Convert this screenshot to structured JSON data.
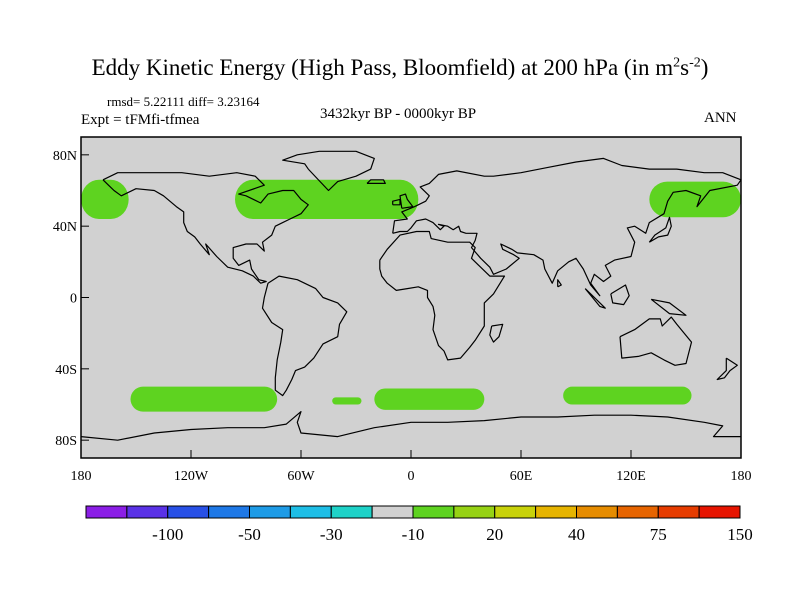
{
  "title_main": "Eddy Kinetic Energy (High Pass, Bloomfield) at 200 hPa (in m",
  "title_sup1": "2",
  "title_mid": "s",
  "title_sup2": "-2",
  "title_end": ")",
  "stats": "rmsd= 5.22111  diff= 3.23164",
  "expt": "Expt = tFMfi-tfmea",
  "period": "3432kyr BP - 0000kyr BP",
  "season": "ANN",
  "chart_data": {
    "type": "heatmap",
    "title": "Eddy Kinetic Energy (High Pass, Bloomfield) at 200 hPa (in m2s-2)",
    "x_axis": {
      "label": "",
      "range": [
        -180,
        180
      ],
      "ticks": [
        {
          "v": -180,
          "label": "180"
        },
        {
          "v": -120,
          "label": "120W"
        },
        {
          "v": -60,
          "label": "60W"
        },
        {
          "v": 0,
          "label": "0"
        },
        {
          "v": 60,
          "label": "60E"
        },
        {
          "v": 120,
          "label": "120E"
        },
        {
          "v": 180,
          "label": "180"
        }
      ]
    },
    "y_axis": {
      "label": "",
      "range": [
        -90,
        90
      ],
      "ticks": [
        {
          "v": 80,
          "label": "80N"
        },
        {
          "v": 40,
          "label": "40N"
        },
        {
          "v": 0,
          "label": "0"
        },
        {
          "v": -40,
          "label": "40S"
        },
        {
          "v": -80,
          "label": "80S"
        }
      ]
    },
    "background_color": "#d1d1d1",
    "regions": [
      {
        "name": "north-pacific-east",
        "level": "10 to 20",
        "color": "#5ed320",
        "center": [
          -168,
          55
        ],
        "half_width": [
          14,
          11
        ]
      },
      {
        "name": "north-atlantic",
        "level": "10 to 20",
        "color": "#5ed320",
        "center": [
          -46,
          55
        ],
        "half_width": [
          50,
          11
        ]
      },
      {
        "name": "north-pacific-west",
        "level": "10 to 20",
        "color": "#5ed320",
        "center": [
          155,
          55
        ],
        "half_width": [
          25,
          10
        ]
      },
      {
        "name": "south-pacific",
        "level": "10 to 20",
        "color": "#5ed320",
        "center": [
          -113,
          -57
        ],
        "half_width": [
          40,
          7
        ]
      },
      {
        "name": "south-atlantic-small",
        "level": "10 to 20",
        "color": "#5ed320",
        "center": [
          -35,
          -58
        ],
        "half_width": [
          8,
          2
        ]
      },
      {
        "name": "south-indian-west",
        "level": "10 to 20",
        "color": "#5ed320",
        "center": [
          10,
          -57
        ],
        "half_width": [
          30,
          6
        ]
      },
      {
        "name": "south-indian-east",
        "level": "10 to 20",
        "color": "#5ed320",
        "center": [
          118,
          -55
        ],
        "half_width": [
          35,
          5
        ]
      }
    ],
    "colorbar": {
      "colors": [
        "#8b1ee6",
        "#5a32e6",
        "#2850e6",
        "#1e78e6",
        "#1e9be6",
        "#1ebee6",
        "#1ed2c8",
        "#d1d1d1",
        "#5ed320",
        "#96d214",
        "#c8d20a",
        "#e6b400",
        "#e68c00",
        "#e66400",
        "#e63c00",
        "#e61400"
      ],
      "labels": [
        "-100",
        "-50",
        "-30",
        "-10",
        "20",
        "40",
        "75",
        "150"
      ]
    }
  }
}
